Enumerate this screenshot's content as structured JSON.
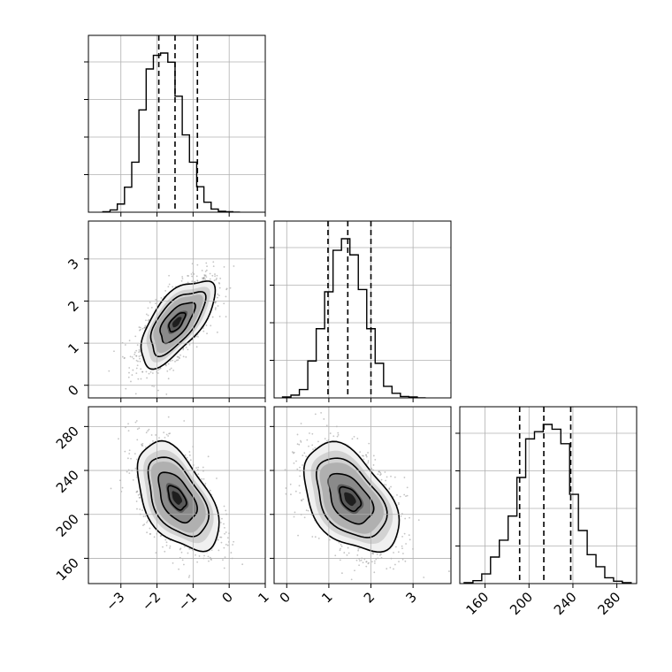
{
  "chart_data": {
    "type": "corner",
    "title": "",
    "params": [
      {
        "range": [
          -3.9,
          1.0
        ],
        "ticks": [
          -3,
          -2,
          -1,
          0,
          1
        ],
        "tick_labels": [
          "−3",
          "−2",
          "−1",
          "0",
          "1"
        ]
      },
      {
        "range": [
          -0.3,
          3.9
        ],
        "ticks": [
          0,
          1,
          2,
          3
        ],
        "tick_labels": [
          "0",
          "1",
          "2",
          "3"
        ]
      },
      {
        "range": [
          137,
          298
        ],
        "ticks": [
          160,
          200,
          240,
          280
        ],
        "tick_labels": [
          "160",
          "200",
          "240",
          "280"
        ]
      }
    ],
    "histograms": [
      {
        "param": 0,
        "bin_edges": [
          -3.5,
          -3.3,
          -3.1,
          -2.9,
          -2.7,
          -2.5,
          -2.3,
          -2.1,
          -1.9,
          -1.7,
          -1.5,
          -1.3,
          -1.1,
          -0.9,
          -0.7,
          -0.5,
          -0.3,
          -0.1,
          0.1,
          0.3
        ],
        "counts": [
          1,
          5,
          18,
          55,
          110,
          225,
          315,
          345,
          350,
          330,
          255,
          170,
          110,
          56,
          22,
          7,
          2,
          1,
          0
        ],
        "ymax": 350,
        "quantiles": [
          -1.95,
          -1.5,
          -0.88
        ]
      },
      {
        "param": 1,
        "bin_edges": [
          -0.1,
          0.1,
          0.3,
          0.5,
          0.7,
          0.9,
          1.1,
          1.3,
          1.5,
          1.7,
          1.9,
          2.1,
          2.3,
          2.5,
          2.7,
          2.9,
          3.1,
          3.3
        ],
        "counts": [
          2,
          6,
          18,
          80,
          150,
          230,
          320,
          345,
          310,
          235,
          150,
          75,
          25,
          10,
          3,
          2,
          0
        ],
        "ymax": 345,
        "quantiles": [
          0.98,
          1.45,
          2.0
        ]
      },
      {
        "param": 2,
        "bin_edges": [
          141,
          149,
          157,
          165,
          173,
          181,
          189,
          197,
          205,
          213,
          221,
          229,
          237,
          245,
          253,
          261,
          269,
          277,
          285,
          293
        ],
        "counts": [
          2,
          6,
          20,
          55,
          90,
          140,
          220,
          300,
          315,
          330,
          320,
          290,
          185,
          110,
          60,
          35,
          12,
          5,
          2
        ],
        "ymax": 330,
        "quantiles": [
          191.5,
          213.5,
          238
        ]
      }
    ],
    "joint_2d": [
      {
        "x_param": 0,
        "y_param": 1,
        "center": [
          -1.45,
          1.5
        ],
        "std": [
          0.5,
          0.5
        ],
        "corr": 0.65
      },
      {
        "x_param": 0,
        "y_param": 2,
        "center": [
          -1.45,
          215
        ],
        "std": [
          0.55,
          24
        ],
        "corr": -0.5
      },
      {
        "x_param": 1,
        "y_param": 2,
        "center": [
          1.5,
          214
        ],
        "std": [
          0.55,
          24
        ],
        "corr": -0.45
      }
    ],
    "quantile_line_style": "dashed",
    "grid": true,
    "legend": "none"
  }
}
